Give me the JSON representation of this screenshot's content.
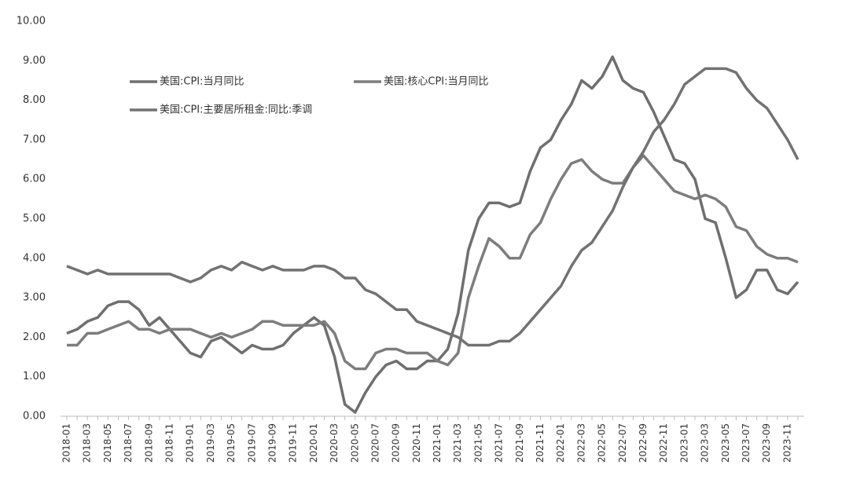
{
  "chart_data": {
    "type": "line",
    "categories": [
      "2018-01",
      null,
      "2018-03",
      null,
      "2018-05",
      null,
      "2018-07",
      null,
      "2018-09",
      null,
      "2018-11",
      null,
      "2019-01",
      null,
      "2019-03",
      null,
      "2019-05",
      null,
      "2019-07",
      null,
      "2019-09",
      null,
      "2019-11",
      null,
      "2020-01",
      null,
      "2020-03",
      null,
      "2020-05",
      null,
      "2020-07",
      null,
      "2020-09",
      null,
      "2020-11",
      null,
      "2021-01",
      null,
      "2021-03",
      null,
      "2021-05",
      null,
      "2021-07",
      null,
      "2021-09",
      null,
      "2021-11",
      null,
      "2022-01",
      null,
      "2022-03",
      null,
      "2022-05",
      null,
      "2022-07",
      null,
      "2022-09",
      null,
      "2022-11",
      null,
      "2023-01",
      null,
      "2023-03",
      null,
      "2023-05",
      null,
      "2023-07",
      null,
      "2023-09",
      null,
      "2023-11",
      null
    ],
    "series": [
      {
        "name": "美国:CPI:当月同比",
        "color": "#6f6f6f",
        "values": [
          2.1,
          2.2,
          2.4,
          2.5,
          2.8,
          2.9,
          2.9,
          2.7,
          2.3,
          2.5,
          2.2,
          1.9,
          1.6,
          1.5,
          1.9,
          2.0,
          1.8,
          1.6,
          1.8,
          1.7,
          1.7,
          1.8,
          2.1,
          2.3,
          2.5,
          2.3,
          1.5,
          0.3,
          0.1,
          0.6,
          1.0,
          1.3,
          1.4,
          1.2,
          1.2,
          1.4,
          1.4,
          1.7,
          2.6,
          4.2,
          5.0,
          5.4,
          5.4,
          5.3,
          5.4,
          6.2,
          6.8,
          7.0,
          7.5,
          7.9,
          8.5,
          8.3,
          8.6,
          9.1,
          8.5,
          8.3,
          8.2,
          7.7,
          7.1,
          6.5,
          6.4,
          6.0,
          5.0,
          4.9,
          4.0,
          3.0,
          3.2,
          3.7,
          3.7,
          3.2,
          3.1,
          3.4
        ]
      },
      {
        "name": "美国:核心CPI:当月同比",
        "color": "#7d7d7d",
        "values": [
          1.8,
          1.8,
          2.1,
          2.1,
          2.2,
          2.3,
          2.4,
          2.2,
          2.2,
          2.1,
          2.2,
          2.2,
          2.2,
          2.1,
          2.0,
          2.1,
          2.0,
          2.1,
          2.2,
          2.4,
          2.4,
          2.3,
          2.3,
          2.3,
          2.3,
          2.4,
          2.1,
          1.4,
          1.2,
          1.2,
          1.6,
          1.7,
          1.7,
          1.6,
          1.6,
          1.6,
          1.4,
          1.3,
          1.6,
          3.0,
          3.8,
          4.5,
          4.3,
          4.0,
          4.0,
          4.6,
          4.9,
          5.5,
          6.0,
          6.4,
          6.5,
          6.2,
          6.0,
          5.9,
          5.9,
          6.3,
          6.6,
          6.3,
          6.0,
          5.7,
          5.6,
          5.5,
          5.6,
          5.5,
          5.3,
          4.8,
          4.7,
          4.3,
          4.1,
          4.0,
          4.0,
          3.9
        ]
      },
      {
        "name": "美国:CPI:主要居所租金:同比:季调",
        "color": "#727272",
        "values": [
          3.8,
          3.7,
          3.6,
          3.7,
          3.6,
          3.6,
          3.6,
          3.6,
          3.6,
          3.6,
          3.6,
          3.5,
          3.4,
          3.5,
          3.7,
          3.8,
          3.7,
          3.9,
          3.8,
          3.7,
          3.8,
          3.7,
          3.7,
          3.7,
          3.8,
          3.8,
          3.7,
          3.5,
          3.5,
          3.2,
          3.1,
          2.9,
          2.7,
          2.7,
          2.4,
          2.3,
          2.2,
          2.1,
          2.0,
          1.8,
          1.8,
          1.8,
          1.9,
          1.9,
          2.1,
          2.4,
          2.7,
          3.0,
          3.3,
          3.8,
          4.2,
          4.4,
          4.8,
          5.2,
          5.8,
          6.3,
          6.7,
          7.2,
          7.5,
          7.9,
          8.4,
          8.6,
          8.8,
          8.8,
          8.8,
          8.7,
          8.3,
          8.0,
          7.8,
          7.4,
          7.0,
          6.5
        ]
      }
    ],
    "ylim": [
      0,
      10
    ],
    "yticks": [
      {
        "value": 0,
        "label": "0.00"
      },
      {
        "value": 1,
        "label": "1.00"
      },
      {
        "value": 2,
        "label": "2.00"
      },
      {
        "value": 3,
        "label": "3.00"
      },
      {
        "value": 4,
        "label": "4.00"
      },
      {
        "value": 5,
        "label": "5.00"
      },
      {
        "value": 6,
        "label": "6.00"
      },
      {
        "value": 7,
        "label": "7.00"
      },
      {
        "value": 8,
        "label": "8.00"
      },
      {
        "value": 9,
        "label": "9.00"
      },
      {
        "value": 10,
        "label": "10.00"
      }
    ],
    "grid": false
  }
}
